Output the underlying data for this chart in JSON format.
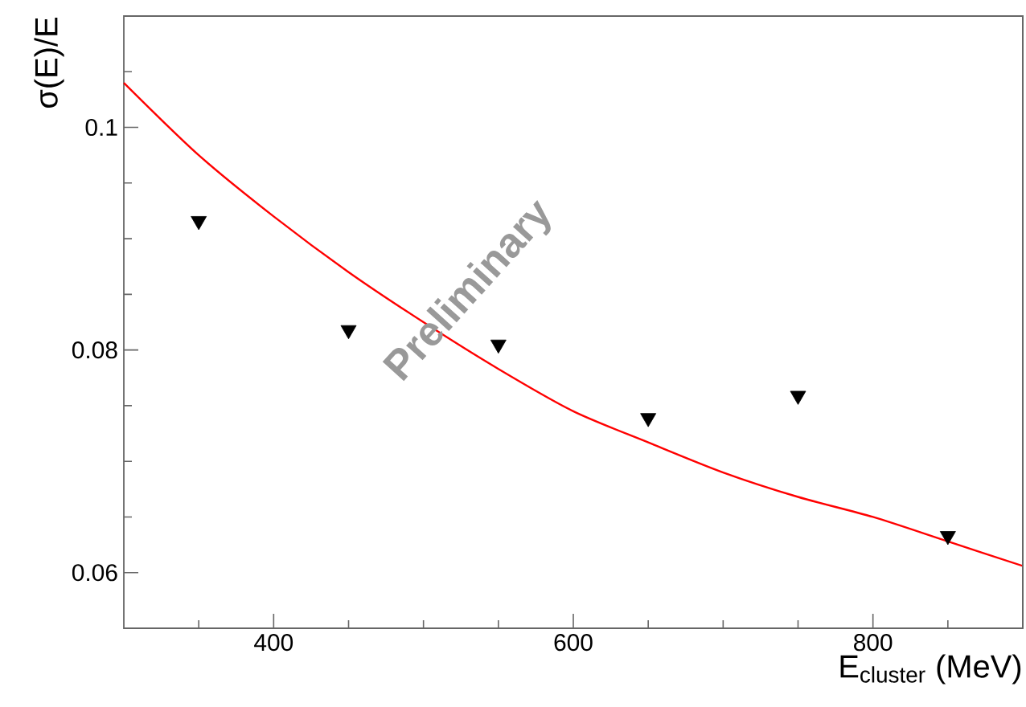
{
  "chart_data": {
    "type": "scatter",
    "xlabel": "E$_{cluster}$ (MeV)",
    "ylabel": "σ(E)/E",
    "annotations": [
      "Preliminary"
    ],
    "xlim": [
      300,
      900
    ],
    "ylim": [
      0.055,
      0.11
    ],
    "xticks": [
      400,
      600,
      800,
      {
        "value": 350,
        "label": null
      },
      {
        "value": 450,
        "label": null
      },
      {
        "value": 500,
        "label": null
      },
      {
        "value": 550,
        "label": null
      },
      {
        "value": 650,
        "label": null
      },
      {
        "value": 700,
        "label": null
      },
      {
        "value": 750,
        "label": null
      },
      {
        "value": 850,
        "label": null
      }
    ],
    "yticks": [
      0.06,
      0.08,
      0.1,
      {
        "value": 0.065,
        "label": null
      },
      {
        "value": 0.07,
        "label": null
      },
      {
        "value": 0.075,
        "label": null
      },
      {
        "value": 0.085,
        "label": null
      },
      {
        "value": 0.09,
        "label": null
      },
      {
        "value": 0.095,
        "label": null
      },
      {
        "value": 0.105,
        "label": null
      }
    ],
    "marker": "triangle",
    "series": [
      {
        "color": "#000000",
        "x": [
          350,
          450,
          550,
          650,
          750,
          850
        ],
        "values": [
          0.0916,
          0.0818,
          0.0805,
          0.0739,
          0.0759,
          0.0633
        ]
      },
      {
        "type": "line",
        "color": "#ff0000",
        "marker": "none",
        "line_style": "solid",
        "x": [
          300,
          350,
          400,
          450,
          500,
          550,
          600,
          650,
          700,
          750,
          800,
          850,
          900
        ],
        "values": [
          0.104,
          0.0975,
          0.092,
          0.087,
          0.0825,
          0.0783,
          0.0745,
          0.0717,
          0.069,
          0.0668,
          0.065,
          0.0628,
          0.0606
        ]
      }
    ]
  }
}
